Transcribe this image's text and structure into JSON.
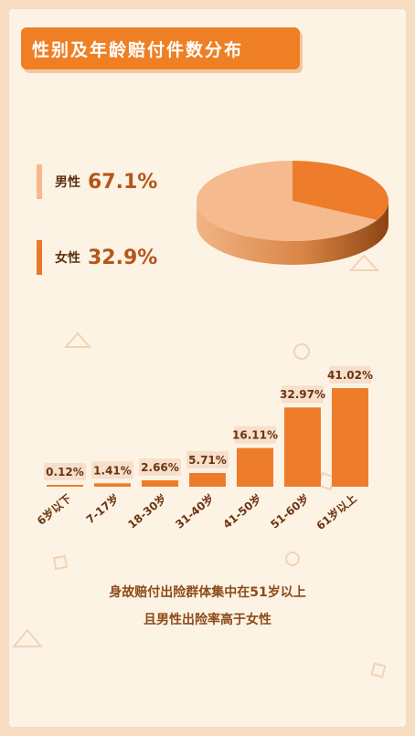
{
  "title": "性别及年龄赔付件数分布",
  "gender": [
    {
      "label": "男性",
      "value": "67.1%",
      "color": "#f6b98b"
    },
    {
      "label": "女性",
      "value": "32.9%",
      "color": "#e8792c"
    }
  ],
  "chart_data": [
    {
      "type": "pie",
      "categories": [
        "男性",
        "女性"
      ],
      "values": [
        67.1,
        32.9
      ],
      "colors": [
        "#f5ba8e",
        "#ee7d2b"
      ]
    },
    {
      "type": "bar",
      "categories": [
        "6岁以下",
        "7-17岁",
        "18-30岁",
        "31-40岁",
        "41-50岁",
        "51-60岁",
        "61岁以上"
      ],
      "values": [
        0.12,
        1.41,
        2.66,
        5.71,
        16.11,
        32.97,
        41.02
      ],
      "value_labels": [
        "0.12%",
        "1.41%",
        "2.66%",
        "5.71%",
        "16.11%",
        "32.97%",
        "41.02%"
      ],
      "ylim": [
        0,
        41.02
      ],
      "bar_color": "#ee7d2b"
    }
  ],
  "footer": {
    "line1": "身故赔付出险群体集中在51岁以上",
    "line2": "且男性出险率高于女性"
  }
}
